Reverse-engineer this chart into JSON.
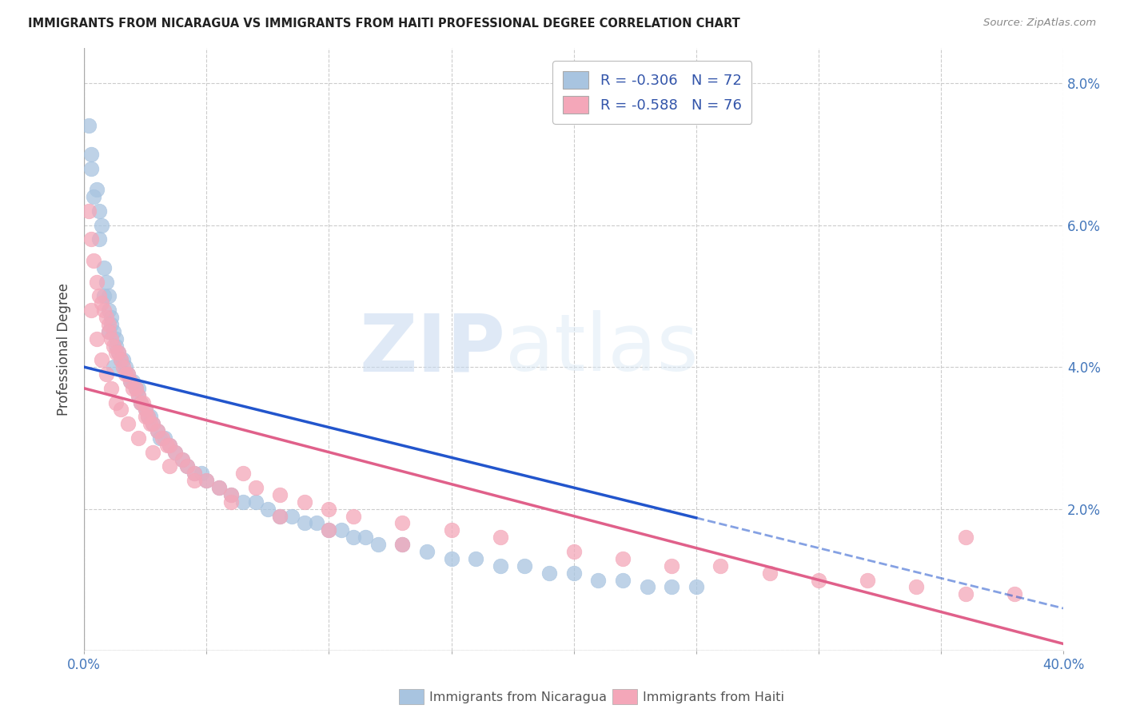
{
  "title": "IMMIGRANTS FROM NICARAGUA VS IMMIGRANTS FROM HAITI PROFESSIONAL DEGREE CORRELATION CHART",
  "source": "Source: ZipAtlas.com",
  "ylabel": "Professional Degree",
  "xlim": [
    0.0,
    0.4
  ],
  "ylim": [
    0.0,
    0.085
  ],
  "legend_label1": "R = -0.306   N = 72",
  "legend_label2": "R = -0.588   N = 76",
  "color_nicaragua": "#a8c4e0",
  "color_haiti": "#f4a7b9",
  "trendline_nicaragua_color": "#2255cc",
  "trendline_haiti_color": "#e0608a",
  "background_color": "#ffffff",
  "watermark_zip": "ZIP",
  "watermark_atlas": "atlas",
  "bottom_label1": "Immigrants from Nicaragua",
  "bottom_label2": "Immigrants from Haiti",
  "nic_slope": -0.085,
  "nic_intercept": 0.04,
  "hai_slope": -0.09,
  "hai_intercept": 0.037,
  "nic_points_x": [
    0.002,
    0.003,
    0.005,
    0.006,
    0.007,
    0.008,
    0.009,
    0.01,
    0.01,
    0.011,
    0.011,
    0.012,
    0.013,
    0.013,
    0.014,
    0.015,
    0.016,
    0.017,
    0.018,
    0.019,
    0.02,
    0.021,
    0.022,
    0.022,
    0.023,
    0.025,
    0.026,
    0.027,
    0.028,
    0.03,
    0.031,
    0.033,
    0.035,
    0.037,
    0.04,
    0.042,
    0.045,
    0.048,
    0.05,
    0.055,
    0.06,
    0.065,
    0.07,
    0.075,
    0.08,
    0.085,
    0.09,
    0.095,
    0.1,
    0.105,
    0.11,
    0.115,
    0.12,
    0.13,
    0.14,
    0.15,
    0.16,
    0.17,
    0.18,
    0.19,
    0.2,
    0.21,
    0.22,
    0.23,
    0.24,
    0.25,
    0.003,
    0.004,
    0.006,
    0.008,
    0.01,
    0.012
  ],
  "nic_points_y": [
    0.074,
    0.07,
    0.065,
    0.062,
    0.06,
    0.054,
    0.052,
    0.05,
    0.048,
    0.047,
    0.046,
    0.045,
    0.044,
    0.043,
    0.042,
    0.041,
    0.041,
    0.04,
    0.039,
    0.038,
    0.038,
    0.037,
    0.037,
    0.036,
    0.035,
    0.034,
    0.033,
    0.033,
    0.032,
    0.031,
    0.03,
    0.03,
    0.029,
    0.028,
    0.027,
    0.026,
    0.025,
    0.025,
    0.024,
    0.023,
    0.022,
    0.021,
    0.021,
    0.02,
    0.019,
    0.019,
    0.018,
    0.018,
    0.017,
    0.017,
    0.016,
    0.016,
    0.015,
    0.015,
    0.014,
    0.013,
    0.013,
    0.012,
    0.012,
    0.011,
    0.011,
    0.01,
    0.01,
    0.009,
    0.009,
    0.009,
    0.068,
    0.064,
    0.058,
    0.05,
    0.045,
    0.04
  ],
  "hai_points_x": [
    0.002,
    0.003,
    0.004,
    0.005,
    0.006,
    0.007,
    0.008,
    0.009,
    0.01,
    0.01,
    0.011,
    0.012,
    0.013,
    0.014,
    0.015,
    0.016,
    0.017,
    0.018,
    0.019,
    0.02,
    0.021,
    0.022,
    0.023,
    0.024,
    0.025,
    0.025,
    0.026,
    0.027,
    0.028,
    0.03,
    0.032,
    0.034,
    0.035,
    0.037,
    0.04,
    0.042,
    0.045,
    0.05,
    0.055,
    0.06,
    0.065,
    0.07,
    0.08,
    0.09,
    0.1,
    0.11,
    0.13,
    0.15,
    0.17,
    0.2,
    0.22,
    0.24,
    0.26,
    0.28,
    0.3,
    0.32,
    0.34,
    0.36,
    0.38,
    0.003,
    0.005,
    0.007,
    0.009,
    0.011,
    0.013,
    0.015,
    0.018,
    0.022,
    0.028,
    0.035,
    0.045,
    0.06,
    0.08,
    0.1,
    0.13,
    0.36
  ],
  "hai_points_y": [
    0.062,
    0.058,
    0.055,
    0.052,
    0.05,
    0.049,
    0.048,
    0.047,
    0.046,
    0.045,
    0.044,
    0.043,
    0.042,
    0.042,
    0.041,
    0.04,
    0.039,
    0.039,
    0.038,
    0.037,
    0.037,
    0.036,
    0.035,
    0.035,
    0.034,
    0.033,
    0.033,
    0.032,
    0.032,
    0.031,
    0.03,
    0.029,
    0.029,
    0.028,
    0.027,
    0.026,
    0.025,
    0.024,
    0.023,
    0.022,
    0.025,
    0.023,
    0.022,
    0.021,
    0.02,
    0.019,
    0.018,
    0.017,
    0.016,
    0.014,
    0.013,
    0.012,
    0.012,
    0.011,
    0.01,
    0.01,
    0.009,
    0.008,
    0.008,
    0.048,
    0.044,
    0.041,
    0.039,
    0.037,
    0.035,
    0.034,
    0.032,
    0.03,
    0.028,
    0.026,
    0.024,
    0.021,
    0.019,
    0.017,
    0.015,
    0.016
  ]
}
